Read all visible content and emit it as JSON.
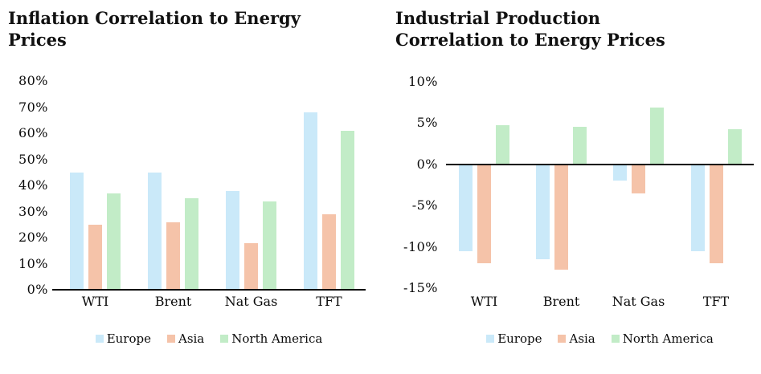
{
  "chart_data": [
    {
      "type": "bar",
      "title": "Inflation Correlation to Energy Prices",
      "title_lines": [
        "Inflation Correlation to Energy",
        "Prices"
      ],
      "categories": [
        "WTI",
        "Brent",
        "Nat Gas",
        "TFT"
      ],
      "series": [
        {
          "name": "Europe",
          "color": "#CAE9F9",
          "values": [
            45,
            45,
            38,
            68
          ]
        },
        {
          "name": "Asia",
          "color": "#F5C3A9",
          "values": [
            25,
            26,
            18,
            29
          ]
        },
        {
          "name": "North America",
          "color": "#C2ECC7",
          "values": [
            37,
            35,
            34,
            61
          ]
        }
      ],
      "ylabel": "",
      "xlabel": "",
      "ylim": [
        0,
        80
      ],
      "yticks": [
        "80%",
        "70%",
        "60%",
        "50%",
        "40%",
        "30%",
        "20%",
        "10%",
        "0%"
      ],
      "ytick_values": [
        80,
        70,
        60,
        50,
        40,
        30,
        20,
        10,
        0
      ],
      "grid": false,
      "legend_position": "bottom",
      "axis_color": "#000000"
    },
    {
      "type": "bar",
      "title": "Industrial Production Correlation to Energy Prices",
      "title_lines": [
        "Industrial Production",
        "Correlation to Energy Prices"
      ],
      "categories": [
        "WTI",
        "Brent",
        "Nat Gas",
        "TFT"
      ],
      "series": [
        {
          "name": "Europe",
          "color": "#CAE9F9",
          "values": [
            -10.5,
            -11.5,
            -2,
            -10.5
          ]
        },
        {
          "name": "Asia",
          "color": "#F5C3A9",
          "values": [
            -12,
            -12.8,
            -3.5,
            -12
          ]
        },
        {
          "name": "North America",
          "color": "#C2ECC7",
          "values": [
            4.7,
            4.5,
            6.8,
            4.2
          ]
        }
      ],
      "ylabel": "",
      "xlabel": "",
      "ylim": [
        -15,
        10
      ],
      "yticks": [
        "10%",
        "5%",
        "0%",
        "-5%",
        "-10%",
        "-15%"
      ],
      "ytick_values": [
        10,
        5,
        0,
        -5,
        -10,
        -15
      ],
      "grid": false,
      "legend_position": "bottom",
      "axis_color": "#000000"
    }
  ]
}
